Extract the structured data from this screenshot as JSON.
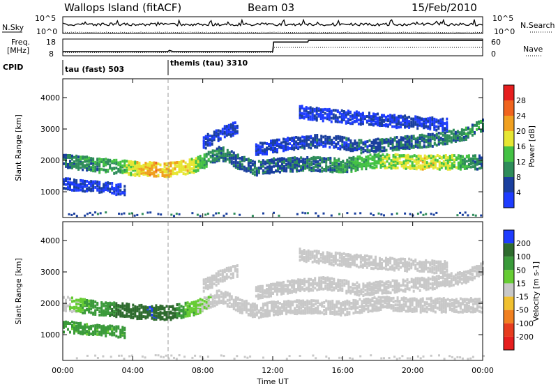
{
  "header": {
    "station": "Wallops Island (fitACF)",
    "beam": "Beam 03",
    "date": "15/Feb/2010"
  },
  "status_panels": {
    "nsky_label": "N.Sky",
    "nsearch_label": "N.Search",
    "noise_ticks": [
      "10^5",
      "10^0"
    ],
    "freq_label": "Freq.",
    "freq_unit": "[MHz]",
    "freq_ticks": [
      "18",
      "8"
    ],
    "nave_label": "Nave",
    "nave_ticks": [
      "60",
      "0"
    ],
    "cpid_label": "CPID",
    "cpid_segments": [
      {
        "label": "tau (fast) 503",
        "start_hour": 0
      },
      {
        "label": "themis (tau) 3310",
        "start_hour": 6
      }
    ],
    "freq_series": [
      [
        0,
        10.5
      ],
      [
        6,
        10.5
      ],
      [
        6.1,
        11.2
      ],
      [
        6.3,
        10.5
      ],
      [
        12,
        10.5
      ],
      [
        12.05,
        16.2
      ],
      [
        14,
        16.2
      ],
      [
        14.05,
        17.2
      ],
      [
        24,
        17.2
      ]
    ],
    "nave_series": [
      [
        0,
        12
      ],
      [
        12,
        12
      ],
      [
        12.05,
        30
      ],
      [
        24,
        30
      ]
    ]
  },
  "power_panel": {
    "ylabel": "Slant Range [km]",
    "yticks": [
      "1000",
      "2000",
      "3000",
      "4000"
    ],
    "colorbar_label": "Power [dB]",
    "colorbar_ticks": [
      "4",
      "8",
      "12",
      "16",
      "20",
      "24",
      "28"
    ],
    "colors": [
      "#1e3cff",
      "#1a3f9e",
      "#2e8c5a",
      "#44c244",
      "#e6e633",
      "#f0a020",
      "#f0641e",
      "#e61e1e"
    ]
  },
  "velocity_panel": {
    "ylabel": "Slant Range [km]",
    "yticks": [
      "1000",
      "2000",
      "3000",
      "4000"
    ],
    "colorbar_label": "Velocity [m s-1]",
    "colorbar_ticks": [
      "200",
      "100",
      "50",
      "15",
      "-15",
      "-50",
      "-100",
      "-200"
    ],
    "colors": [
      "#1e3cff",
      "#2e6b2e",
      "#3a9a3a",
      "#66cc33",
      "#c8c8c8",
      "#f0c030",
      "#f08020",
      "#e63c1e",
      "#e61e1e"
    ]
  },
  "time_axis": {
    "xlabel": "Time UT",
    "ticks": [
      "00:00",
      "04:00",
      "08:00",
      "12:00",
      "16:00",
      "20:00",
      "00:00"
    ]
  },
  "chart_data": {
    "type": "heatmap",
    "x_range_hours": [
      0,
      24
    ],
    "y_range_km": [
      180,
      4600
    ],
    "marker_hour": 6,
    "power_bands": [
      {
        "range_km": [
          [
            0,
            2050
          ],
          [
            2,
            1900
          ],
          [
            4,
            1800
          ],
          [
            6,
            1750
          ],
          [
            7.5,
            1900
          ],
          [
            9,
            2300
          ],
          [
            10,
            2000
          ],
          [
            11,
            1800
          ],
          [
            12,
            1900
          ],
          [
            14,
            1950
          ],
          [
            16,
            1900
          ],
          [
            18,
            2050
          ],
          [
            20,
            2000
          ],
          [
            22,
            2000
          ],
          [
            24,
            2000
          ]
        ],
        "width_km": 220,
        "power_dB": [
          [
            0,
            10
          ],
          [
            3,
            14
          ],
          [
            5,
            24
          ],
          [
            7,
            20
          ],
          [
            9,
            10
          ],
          [
            12,
            9
          ],
          [
            16,
            12
          ],
          [
            19,
            18
          ],
          [
            21,
            20
          ],
          [
            23,
            14
          ],
          [
            24,
            10
          ]
        ]
      },
      {
        "range_km": [
          [
            11,
            2400
          ],
          [
            13,
            2600
          ],
          [
            15,
            2700
          ],
          [
            17,
            2500
          ],
          [
            19,
            2600
          ],
          [
            21,
            2700
          ],
          [
            23,
            2900
          ],
          [
            24,
            3200
          ]
        ],
        "width_km": 200,
        "power_dB": [
          [
            11,
            6
          ],
          [
            16,
            8
          ],
          [
            20,
            10
          ],
          [
            24,
            12
          ]
        ]
      },
      {
        "range_km": [
          [
            0,
            1300
          ],
          [
            2,
            1200
          ],
          [
            3.5,
            1100
          ]
        ],
        "width_km": 160,
        "power_dB": [
          [
            0,
            6
          ],
          [
            3.5,
            6
          ]
        ]
      },
      {
        "range_km": [
          [
            8,
            2600
          ],
          [
            9,
            2900
          ],
          [
            10,
            3100
          ]
        ],
        "width_km": 180,
        "power_dB": [
          [
            8,
            6
          ],
          [
            10,
            6
          ]
        ]
      },
      {
        "range_km": [
          [
            13.5,
            3600
          ],
          [
            15,
            3500
          ],
          [
            17,
            3400
          ],
          [
            19,
            3300
          ],
          [
            22,
            3200
          ]
        ],
        "width_km": 200,
        "power_dB": [
          [
            13.5,
            5
          ],
          [
            22,
            6
          ]
        ]
      }
    ],
    "velocity_bands": [
      {
        "range_km": [
          [
            0,
            2050
          ],
          [
            2,
            1900
          ],
          [
            4,
            1800
          ],
          [
            6,
            1750
          ],
          [
            7.5,
            1900
          ],
          [
            9,
            2300
          ],
          [
            10,
            2000
          ],
          [
            11,
            1800
          ],
          [
            12,
            1900
          ],
          [
            14,
            1950
          ],
          [
            16,
            1900
          ],
          [
            18,
            2050
          ],
          [
            20,
            2000
          ],
          [
            22,
            2000
          ],
          [
            24,
            2000
          ]
        ],
        "width_km": 220,
        "velocity": [
          [
            0,
            0
          ],
          [
            3,
            80
          ],
          [
            5,
            150
          ],
          [
            6,
            120
          ],
          [
            7,
            30
          ],
          [
            9,
            0
          ],
          [
            24,
            0
          ]
        ]
      },
      {
        "range_km": [
          [
            11,
            2400
          ],
          [
            13,
            2600
          ],
          [
            15,
            2700
          ],
          [
            17,
            2500
          ],
          [
            19,
            2600
          ],
          [
            21,
            2700
          ],
          [
            23,
            2900
          ],
          [
            24,
            3200
          ]
        ],
        "width_km": 200,
        "velocity": [
          [
            11,
            0
          ],
          [
            24,
            0
          ]
        ]
      },
      {
        "range_km": [
          [
            0,
            1300
          ],
          [
            2,
            1200
          ],
          [
            3.5,
            1100
          ]
        ],
        "width_km": 160,
        "velocity": [
          [
            0,
            40
          ],
          [
            3.5,
            40
          ]
        ]
      },
      {
        "range_km": [
          [
            8,
            2600
          ],
          [
            9,
            2900
          ],
          [
            10,
            3100
          ]
        ],
        "width_km": 180,
        "velocity": [
          [
            8,
            0
          ],
          [
            10,
            0
          ]
        ]
      },
      {
        "range_km": [
          [
            13.5,
            3600
          ],
          [
            15,
            3500
          ],
          [
            17,
            3400
          ],
          [
            19,
            3300
          ],
          [
            22,
            3200
          ]
        ],
        "width_km": 200,
        "velocity": [
          [
            13.5,
            0
          ],
          [
            22,
            0
          ]
        ]
      }
    ]
  }
}
